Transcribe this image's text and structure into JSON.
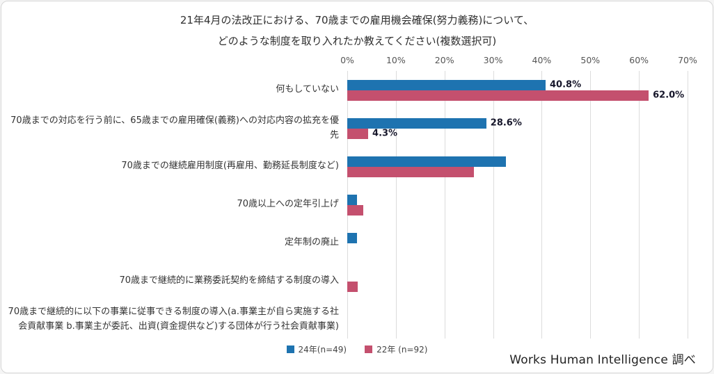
{
  "title": {
    "line1": "21年4月の法改正における、70歳までの雇用機会確保(努力義務)について、",
    "line2": "どのような制度を取り入れたか教えてください(複数選択可)"
  },
  "source": "Works Human Intelligence 調べ",
  "colors": {
    "series_24": "#1e73b0",
    "series_22": "#c4506e",
    "grid": "#dcdcdc"
  },
  "chart_data": {
    "type": "bar",
    "orientation": "horizontal",
    "title": "21年4月の法改正における、70歳までの雇用機会確保(努力義務)について、どのような制度を取り入れたか教えてください(複数選択可)",
    "xlabel": "",
    "ylabel": "",
    "xlim": [
      0,
      70
    ],
    "grid": true,
    "legend_position": "bottom",
    "axis_ticks": [
      "0%",
      "10%",
      "20%",
      "30%",
      "40%",
      "50%",
      "60%",
      "70%"
    ],
    "categories": [
      "何もしていない",
      "70歳までの対応を行う前に、65歳までの雇用確保(義務)への対応内容の拡充を優先",
      "70歳までの継続雇用制度(再雇用、勤務延長制度など)",
      "70歳以上への定年引上げ",
      "定年制の廃止",
      "70歳まで継続的に業務委託契約を締結する制度の導入",
      "70歳まで継続的に以下の事業に従事できる制度の導入(a.事業主が自ら実施する社会貢献事業 b.事業主が委託、出資(資金提供など)する団体が行う社会貢献事業)"
    ],
    "series": [
      {
        "name": "24年(n=49)",
        "color": "#1e73b0",
        "values": [
          40.8,
          28.6,
          32.7,
          2.0,
          2.0,
          0,
          0
        ],
        "labels": [
          "40.8%",
          "28.6%",
          "",
          "",
          "",
          "",
          ""
        ]
      },
      {
        "name": "22年 (n=92)",
        "color": "#c4506e",
        "values": [
          62.0,
          4.3,
          26.1,
          3.3,
          0,
          2.2,
          0
        ],
        "labels": [
          "62.0%",
          "4.3%",
          "",
          "",
          "",
          "",
          ""
        ]
      }
    ]
  }
}
